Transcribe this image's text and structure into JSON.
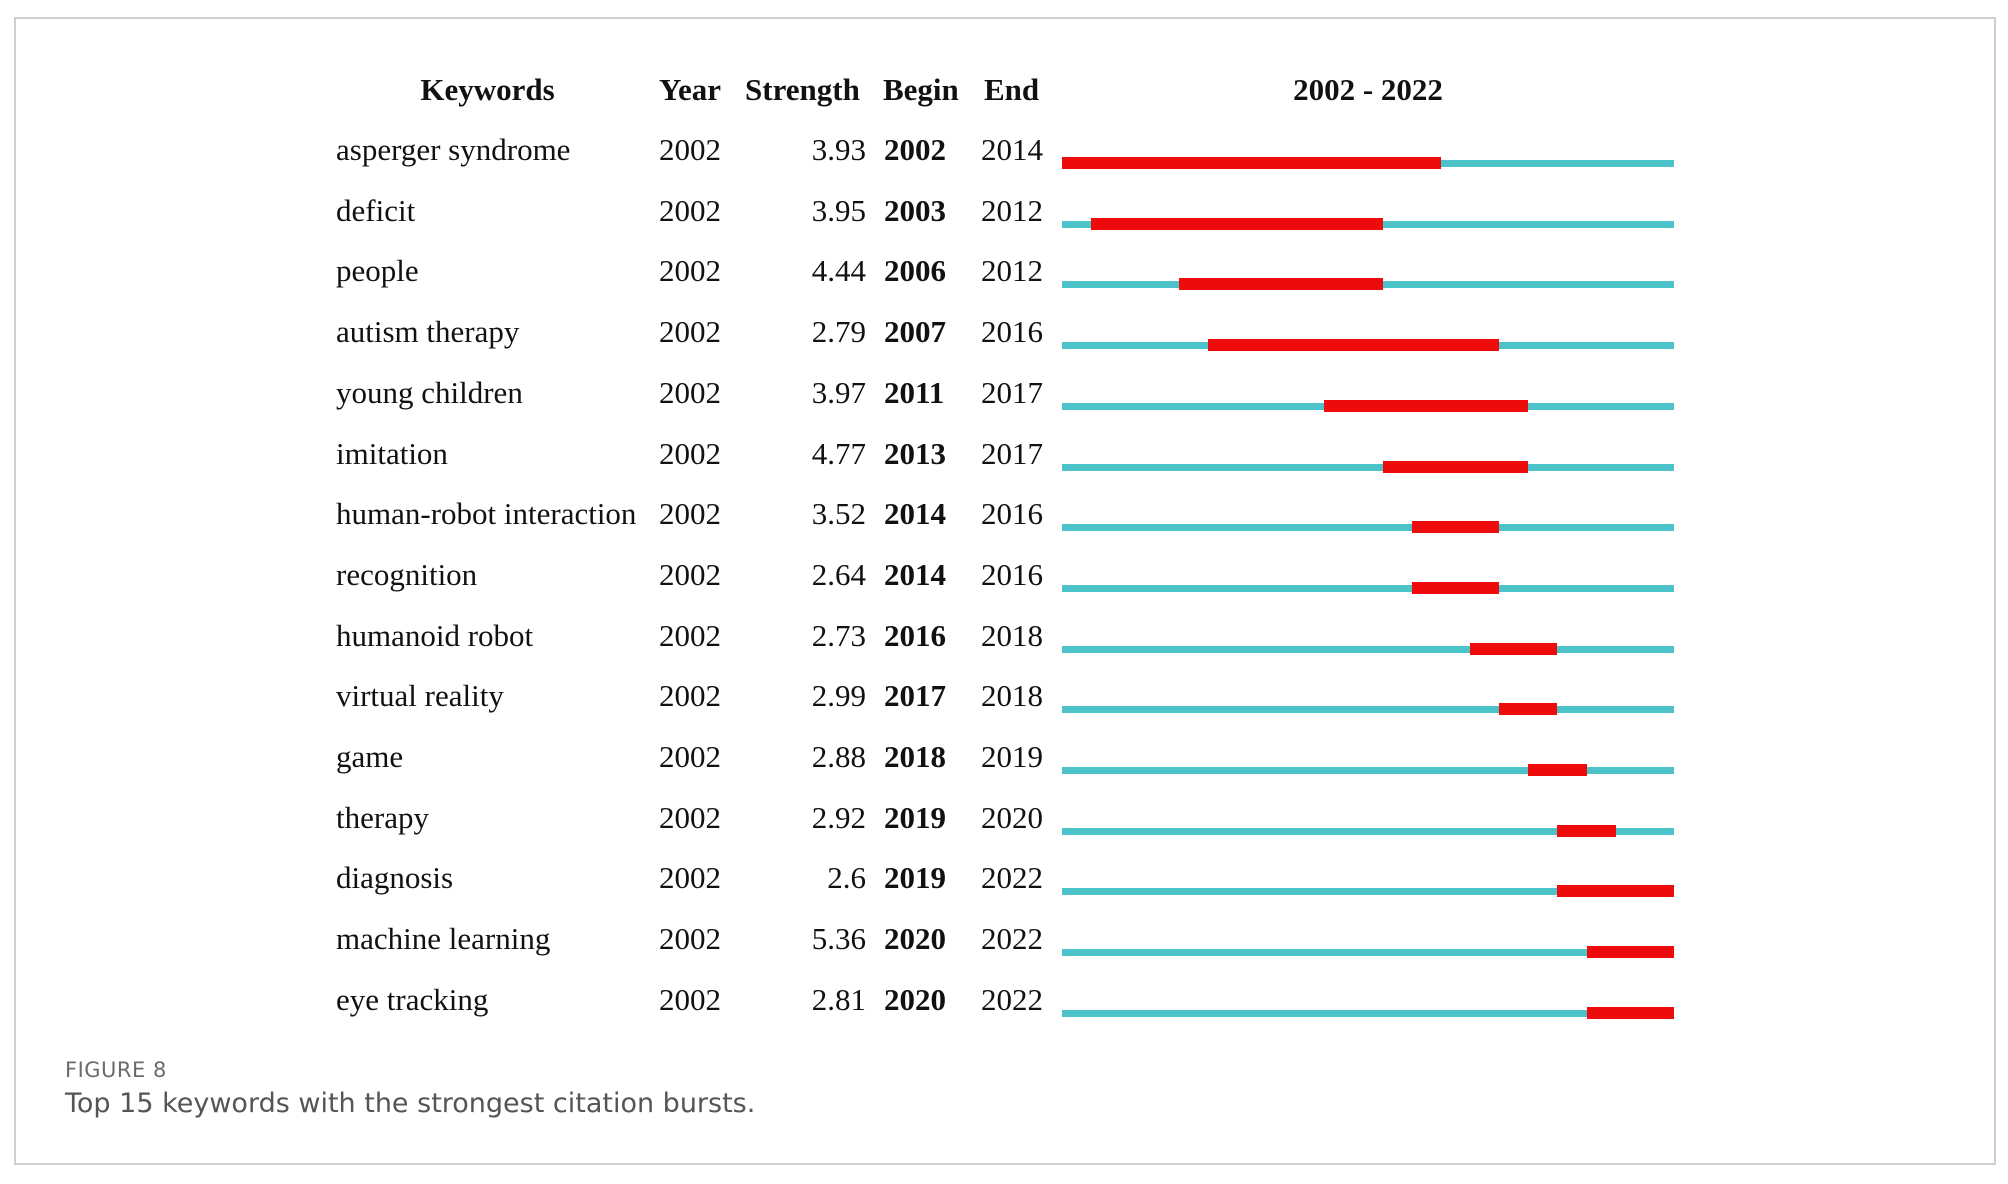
{
  "figure": {
    "label": "FIGURE 8",
    "caption": "Top 15 keywords with the strongest citation bursts."
  },
  "colors": {
    "track": "#4cc3c9",
    "burst": "#ee0b0b"
  },
  "chart_data": {
    "type": "table",
    "columns": {
      "keyword": "Keywords",
      "year": "Year",
      "strength": "Strength",
      "begin": "Begin",
      "end": "End",
      "timeline": "2002 - 2022"
    },
    "range": [
      2002,
      2022
    ],
    "rows": [
      {
        "keyword": "asperger syndrome",
        "year": "2002",
        "strength": "3.93",
        "begin": "2002",
        "end": "2014"
      },
      {
        "keyword": "deficit",
        "year": "2002",
        "strength": "3.95",
        "begin": "2003",
        "end": "2012"
      },
      {
        "keyword": "people",
        "year": "2002",
        "strength": "4.44",
        "begin": "2006",
        "end": "2012"
      },
      {
        "keyword": "autism therapy",
        "year": "2002",
        "strength": "2.79",
        "begin": "2007",
        "end": "2016"
      },
      {
        "keyword": "young children",
        "year": "2002",
        "strength": "3.97",
        "begin": "2011",
        "end": "2017"
      },
      {
        "keyword": "imitation",
        "year": "2002",
        "strength": "4.77",
        "begin": "2013",
        "end": "2017"
      },
      {
        "keyword": "human-robot interaction",
        "year": "2002",
        "strength": "3.52",
        "begin": "2014",
        "end": "2016"
      },
      {
        "keyword": "recognition",
        "year": "2002",
        "strength": "2.64",
        "begin": "2014",
        "end": "2016"
      },
      {
        "keyword": "humanoid robot",
        "year": "2002",
        "strength": "2.73",
        "begin": "2016",
        "end": "2018"
      },
      {
        "keyword": "virtual reality",
        "year": "2002",
        "strength": "2.99",
        "begin": "2017",
        "end": "2018"
      },
      {
        "keyword": "game",
        "year": "2002",
        "strength": "2.88",
        "begin": "2018",
        "end": "2019"
      },
      {
        "keyword": "therapy",
        "year": "2002",
        "strength": "2.92",
        "begin": "2019",
        "end": "2020"
      },
      {
        "keyword": "diagnosis",
        "year": "2002",
        "strength": "2.6",
        "begin": "2019",
        "end": "2022"
      },
      {
        "keyword": "machine learning",
        "year": "2002",
        "strength": "5.36",
        "begin": "2020",
        "end": "2022"
      },
      {
        "keyword": "eye tracking",
        "year": "2002",
        "strength": "2.81",
        "begin": "2020",
        "end": "2022"
      }
    ]
  }
}
